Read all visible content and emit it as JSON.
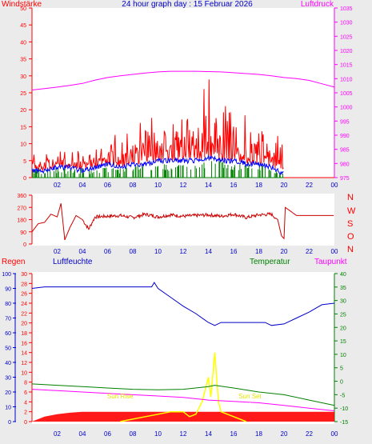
{
  "header": {
    "left_label": "Windstärke",
    "title": "24 hour graph day : 15 Februar 2026",
    "right_label": "Luftdruck"
  },
  "direction_labels": [
    "N",
    "W",
    "S",
    "O",
    "N"
  ],
  "bottom_header": {
    "rain": "Regen",
    "humidity": "Luftfeuchte",
    "temperature": "Temperatur",
    "dewpoint": "Taupunkt"
  },
  "annotations": {
    "sunrise": "Sun Rise",
    "sunset": "Sun Set"
  },
  "x_ticks": [
    "02",
    "04",
    "06",
    "08",
    "10",
    "12",
    "14",
    "16",
    "18",
    "20",
    "22",
    "00"
  ],
  "colors": {
    "wind": "#ff0000",
    "gust": "#ff0000",
    "avg_wind": "#0000ff",
    "wind_green": "#008000",
    "pressure": "#ff00ff",
    "direction": "#cc0000",
    "humidity": "#0000cc",
    "temperature": "#008000",
    "dewpoint": "#ff00ff",
    "rain": "#ff0000",
    "solar": "#ffff00",
    "axis_left": "#ff0000",
    "axis_right": "#ff00ff",
    "humid_axis": "#0000cc",
    "temp_axis": "#008000"
  },
  "chart_data": [
    {
      "type": "line",
      "name": "wind_pressure",
      "x_range": [
        0,
        24
      ],
      "wind_axis": {
        "ticks": [
          0,
          5,
          10,
          15,
          20,
          25,
          30,
          35,
          40,
          45,
          50
        ],
        "ylim": [
          0,
          50
        ]
      },
      "pressure_axis": {
        "ticks": [
          975,
          980,
          985,
          990,
          995,
          1000,
          1005,
          1010,
          1015,
          1020,
          1025,
          1030,
          1035
        ],
        "ylim": [
          975,
          1035
        ]
      },
      "pressure": {
        "x": [
          0,
          1,
          2,
          3,
          4,
          5,
          6,
          7,
          8,
          9,
          10,
          11,
          12,
          13,
          14,
          15,
          16,
          17,
          18,
          19,
          20,
          21,
          22,
          23,
          24
        ],
        "y": [
          1006,
          1006.5,
          1007,
          1007.6,
          1008.3,
          1009.5,
          1010.4,
          1011,
          1011.5,
          1012,
          1012.4,
          1012.6,
          1012.6,
          1012.6,
          1012.5,
          1012.4,
          1012.1,
          1011.8,
          1011.5,
          1011,
          1010.4,
          1010,
          1009.4,
          1008.2,
          1007
        ]
      },
      "wind_max": {
        "x": [
          0,
          1,
          2,
          3,
          4,
          5,
          6,
          7,
          8,
          9,
          10,
          11,
          12,
          13,
          14,
          15,
          16,
          17,
          18,
          19,
          20
        ],
        "y": [
          5,
          6,
          7,
          8,
          6,
          9,
          10,
          9,
          11,
          13,
          14,
          15,
          15,
          14,
          22,
          18,
          16,
          13,
          12,
          11,
          8
        ]
      },
      "avg_wind": {
        "x": [
          0,
          1,
          2,
          3,
          4,
          5,
          6,
          7,
          8,
          9,
          10,
          11,
          12,
          13,
          14,
          15,
          16,
          17,
          18,
          19,
          20
        ],
        "y": [
          2,
          2,
          3,
          3,
          2,
          3,
          4,
          3,
          4,
          4,
          5,
          5,
          5,
          5,
          6,
          5,
          5,
          4,
          4,
          3,
          1
        ]
      },
      "wind_min": {
        "x": [
          0,
          1,
          2,
          3,
          4,
          5,
          6,
          7,
          8,
          9,
          10,
          11,
          12,
          13,
          14,
          15,
          16,
          17,
          18,
          19,
          20
        ],
        "y": [
          1,
          1,
          1,
          1,
          1,
          1,
          1,
          1,
          2,
          2,
          2,
          2,
          2,
          2,
          3,
          3,
          2,
          2,
          2,
          1,
          0
        ]
      }
    },
    {
      "type": "line",
      "name": "wind_direction",
      "x_range": [
        0,
        24
      ],
      "axis": {
        "ticks": [
          0,
          90,
          180,
          270,
          360
        ],
        "ylim": [
          0,
          360
        ]
      },
      "direction": {
        "x": [
          0,
          0.5,
          1,
          1.5,
          2,
          2.3,
          2.6,
          3,
          3.5,
          4,
          4.5,
          5,
          6,
          7,
          8,
          9,
          10,
          11,
          12,
          13,
          14,
          15,
          16,
          17,
          18,
          19,
          19.5,
          19.8,
          20,
          20.1,
          21,
          22,
          23,
          24
        ],
        "y": [
          90,
          150,
          160,
          220,
          200,
          300,
          30,
          120,
          210,
          180,
          110,
          200,
          205,
          210,
          195,
          220,
          200,
          215,
          205,
          210,
          215,
          205,
          220,
          195,
          215,
          220,
          180,
          60,
          40,
          270,
          210,
          210,
          210,
          210
        ]
      }
    },
    {
      "type": "line",
      "name": "rain_humidity_temperature",
      "x_range": [
        0,
        24
      ],
      "humidity_axis": {
        "ticks": [
          0,
          10,
          20,
          30,
          40,
          50,
          60,
          70,
          80,
          90,
          100
        ],
        "ylim": [
          0,
          100
        ]
      },
      "rain_axis": {
        "ticks": [
          0,
          2,
          4,
          6,
          8,
          10,
          12,
          14,
          16,
          18,
          20,
          22,
          24,
          26,
          28,
          30
        ],
        "ylim": [
          0,
          30
        ]
      },
      "temperature_axis": {
        "ticks": [
          -15,
          -10,
          -5,
          0,
          5,
          10,
          15,
          20,
          25,
          30,
          35,
          40
        ],
        "ylim": [
          -15,
          40
        ]
      },
      "humidity": {
        "x": [
          0,
          1,
          2,
          3,
          4,
          5,
          6,
          7,
          8,
          9,
          9.5,
          9.7,
          10,
          11,
          12,
          13,
          14,
          14.5,
          15,
          16,
          17,
          18,
          18.5,
          19,
          20,
          21,
          22,
          23,
          24
        ],
        "y": [
          90,
          91,
          91,
          91,
          91,
          91,
          91,
          91,
          91,
          91,
          91,
          94,
          90,
          84,
          78,
          73,
          67,
          65,
          67,
          67,
          67,
          67,
          67,
          65,
          66,
          70,
          74,
          79,
          80
        ]
      },
      "temperature": {
        "x": [
          0,
          2,
          4,
          6,
          8,
          10,
          12,
          14,
          14.5,
          16,
          18,
          20,
          22,
          24
        ],
        "y": [
          -1,
          -1.5,
          -2,
          -2.5,
          -3,
          -3.2,
          -3,
          -2,
          -1.5,
          -2.5,
          -4,
          -5,
          -7,
          -9
        ]
      },
      "dewpoint": {
        "x": [
          0,
          2,
          4,
          6,
          8,
          10,
          12,
          14,
          16,
          18,
          20,
          22,
          24
        ],
        "y": [
          -3,
          -3.5,
          -4,
          -4.5,
          -5,
          -5.5,
          -6,
          -7,
          -7.5,
          -8,
          -9,
          -10,
          -11
        ]
      },
      "rain": {
        "x": [
          0,
          1,
          2,
          3,
          4,
          5,
          6,
          7,
          8,
          9,
          10,
          11,
          12,
          13,
          14,
          15,
          16,
          17,
          18,
          19,
          20,
          21,
          22,
          23,
          24
        ],
        "y": [
          0,
          1,
          1.5,
          1.8,
          2,
          2,
          2,
          2,
          2,
          2,
          2,
          2,
          2,
          2,
          2,
          2,
          2,
          2,
          2,
          2,
          2,
          2,
          2,
          2,
          2
        ]
      },
      "solar": {
        "x": [
          7,
          8,
          9,
          10,
          11,
          12,
          12.5,
          13,
          13.5,
          14,
          14.2,
          14.5,
          14.8,
          15,
          16,
          17
        ],
        "y": [
          0,
          0.5,
          1,
          1.5,
          2,
          2,
          1,
          1.5,
          4,
          9,
          5,
          14,
          4,
          2,
          1,
          0
        ]
      },
      "sunrise_x": 7.0,
      "sunset_x": 17.3
    }
  ]
}
